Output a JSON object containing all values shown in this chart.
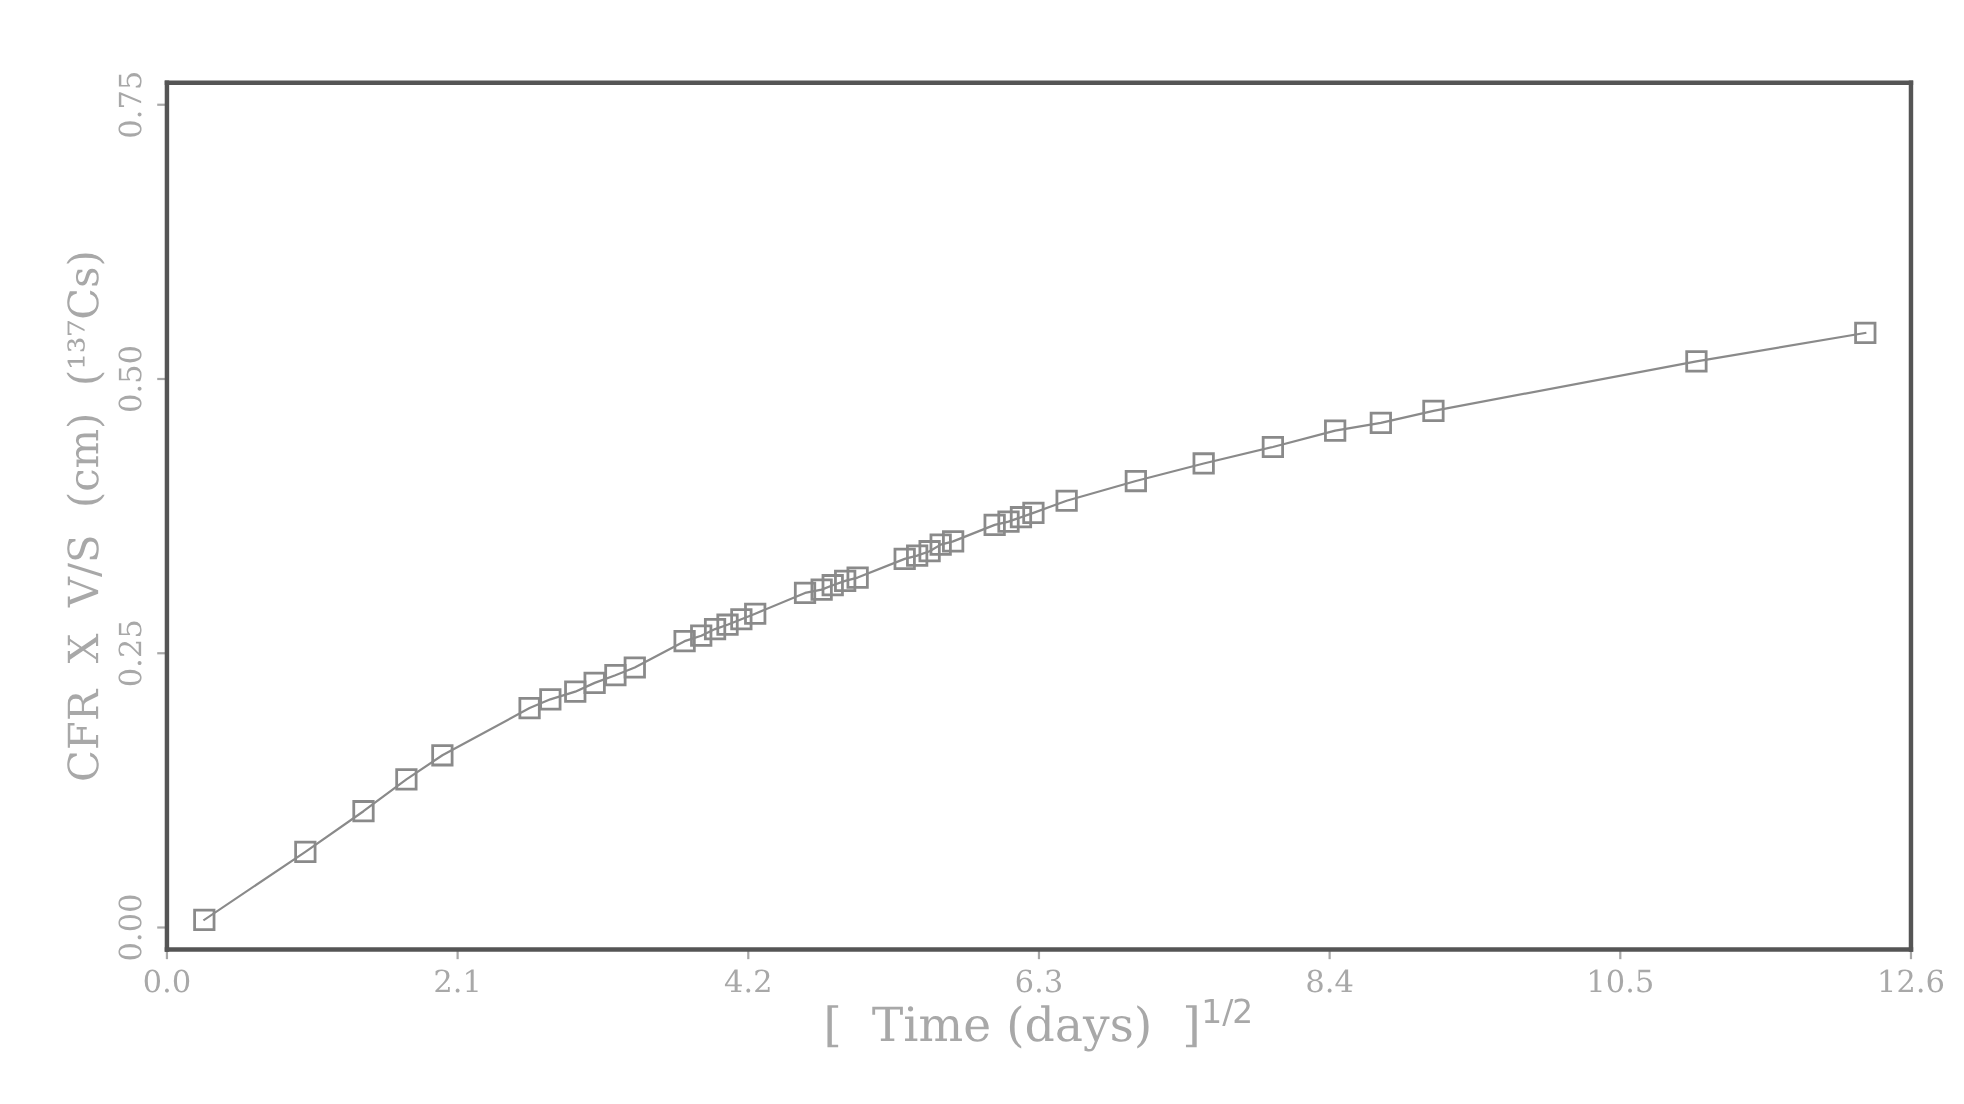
{
  "chart_data": {
    "type": "line",
    "xlabel": "[  Time (days)  ]$^{1/2}$",
    "ylabel": "CFR  X  V/S  (cm)  (¹³⁷Cs)",
    "x": [
      0.27,
      1.0,
      1.42,
      1.73,
      1.99,
      2.62,
      2.77,
      2.95,
      3.09,
      3.24,
      3.38,
      3.74,
      3.86,
      3.96,
      4.05,
      4.15,
      4.25,
      4.61,
      4.73,
      4.81,
      4.9,
      4.99,
      5.33,
      5.42,
      5.51,
      5.59,
      5.68,
      5.98,
      6.08,
      6.17,
      6.26,
      6.5,
      7.0,
      7.49,
      7.99,
      8.44,
      8.77,
      9.15,
      11.05,
      12.27
    ],
    "series": [
      {
        "color": "#8a8a8a",
        "values": [
          0.007,
          0.069,
          0.106,
          0.135,
          0.157,
          0.2,
          0.208,
          0.215,
          0.223,
          0.23,
          0.237,
          0.261,
          0.266,
          0.272,
          0.276,
          0.281,
          0.286,
          0.305,
          0.308,
          0.312,
          0.316,
          0.319,
          0.336,
          0.339,
          0.343,
          0.349,
          0.352,
          0.367,
          0.37,
          0.374,
          0.378,
          0.389,
          0.407,
          0.423,
          0.438,
          0.453,
          0.46,
          0.471,
          0.516,
          0.542
        ]
      }
    ],
    "marker": "square",
    "line_style": "solid",
    "grid": false,
    "legend": false,
    "xlim": [
      0,
      12.6
    ],
    "xticks": [
      {
        "value": 0,
        "label": "0.0"
      },
      {
        "value": 2.1,
        "label": "2.1"
      },
      {
        "value": 4.2,
        "label": "4.2"
      },
      {
        "value": 6.3,
        "label": "6.3"
      },
      {
        "value": 8.4,
        "label": "8.4"
      },
      {
        "value": 10.5,
        "label": "10.5"
      },
      {
        "value": 12.6,
        "label": "12.6"
      }
    ],
    "ylim": [
      -0.02,
      0.77
    ],
    "yticks": [
      {
        "value": 0,
        "label": "0.00"
      },
      {
        "value": 0.25,
        "label": "0.25"
      },
      {
        "value": 0.5,
        "label": "0.50"
      },
      {
        "value": 0.75,
        "label": "0.75"
      }
    ]
  }
}
